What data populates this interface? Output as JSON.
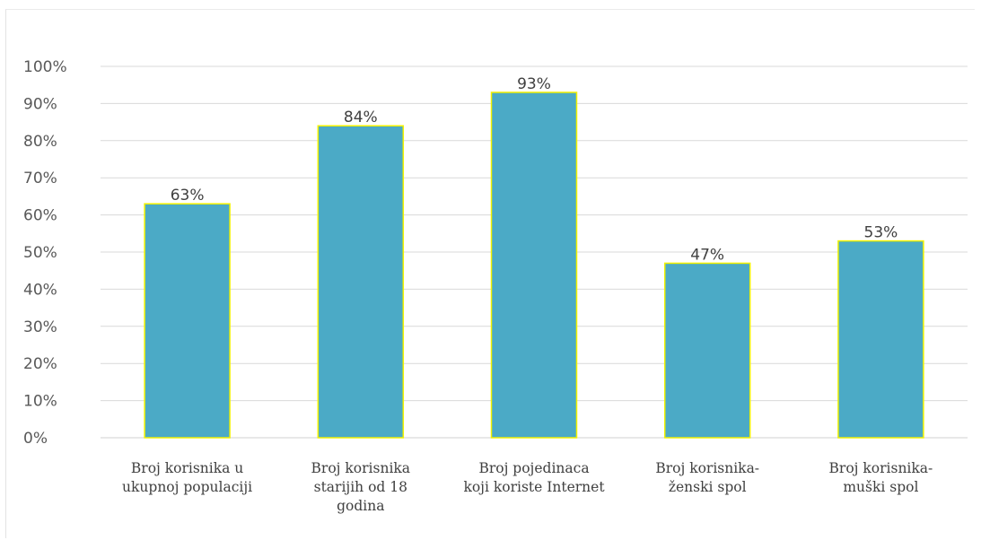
{
  "chart_data": {
    "type": "bar",
    "categories": [
      [
        "Broj korisnika u",
        "ukupnoj populaciji"
      ],
      [
        "Broj korisnika",
        "starijih od 18",
        "godina"
      ],
      [
        "Broj pojedinaca",
        "koji koriste Internet"
      ],
      [
        "Broj korisnika-",
        "ženski spol"
      ],
      [
        "Broj korisnika-",
        "muški spol"
      ]
    ],
    "values": [
      63,
      84,
      93,
      47,
      53
    ],
    "data_labels": [
      "63%",
      "84%",
      "93%",
      "47%",
      "53%"
    ],
    "ylim": [
      0,
      100
    ],
    "y_ticks": [
      "0%",
      "10%",
      "20%",
      "30%",
      "40%",
      "50%",
      "60%",
      "70%",
      "80%",
      "90%",
      "100%"
    ],
    "grid": true,
    "legend": "none",
    "colors": {
      "bar_fill": "#4BAAC6",
      "bar_border": "#F2F200",
      "grid": "#D9D9D9"
    }
  }
}
